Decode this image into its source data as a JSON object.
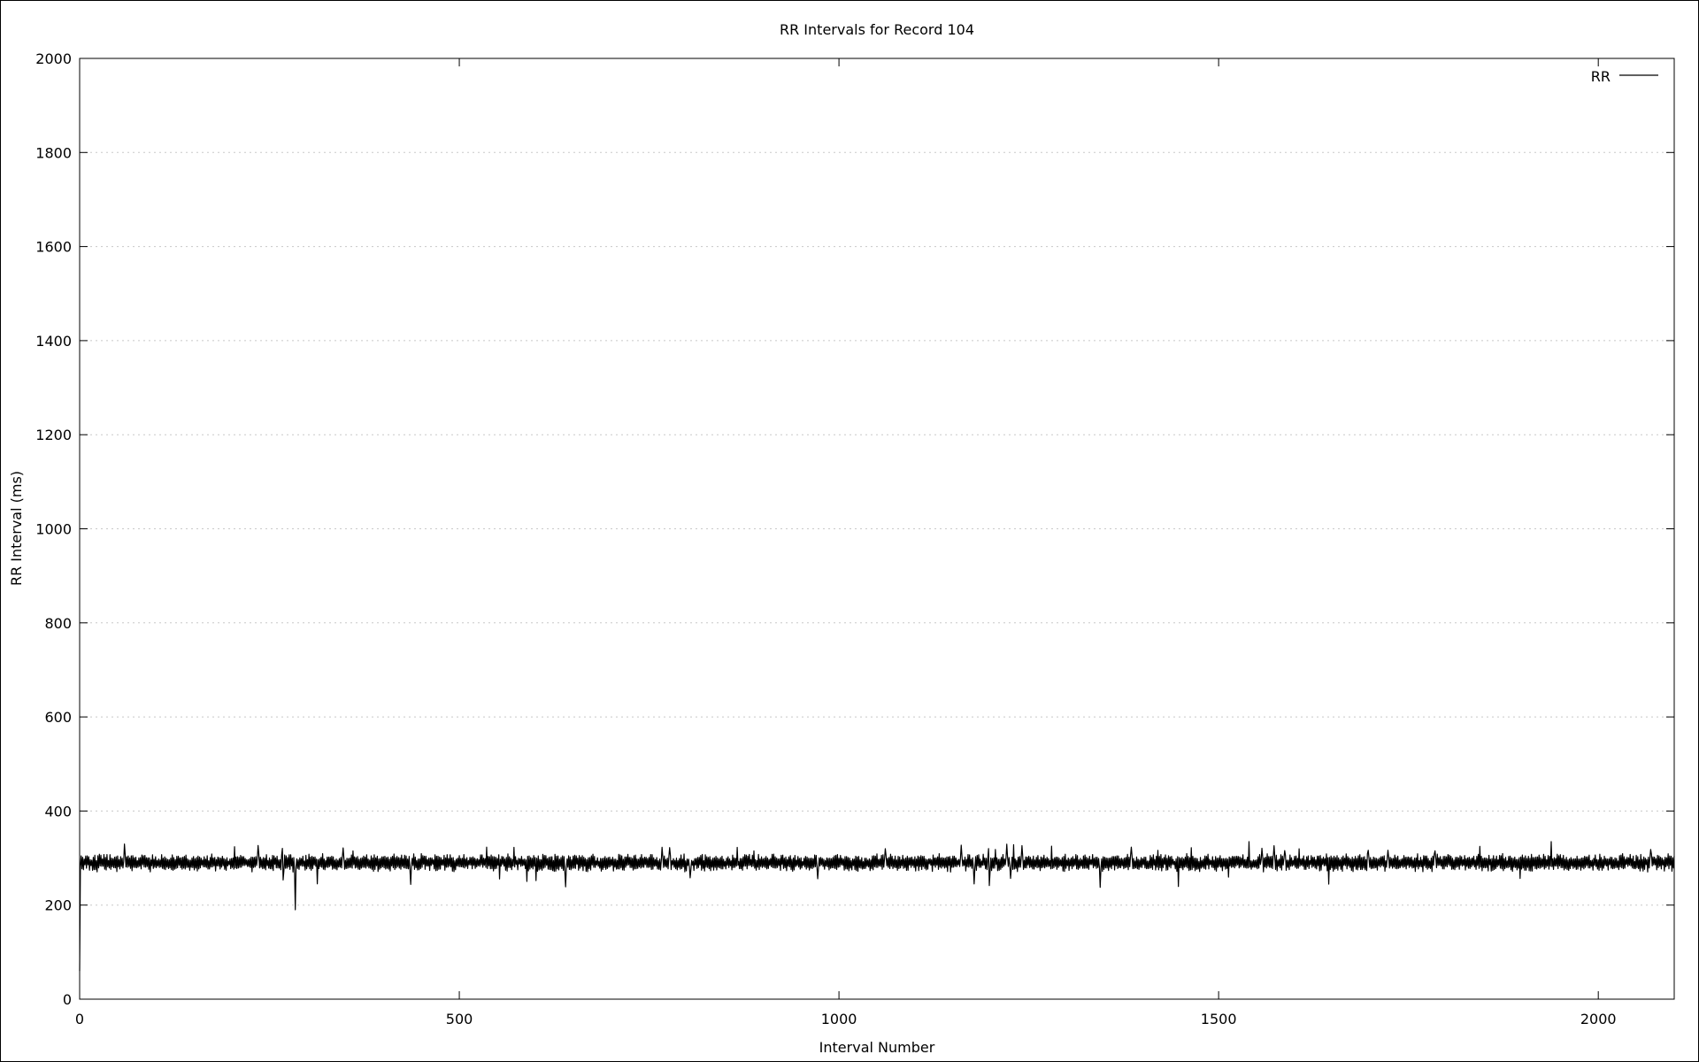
{
  "chart_data": {
    "type": "line",
    "title": "RR Intervals for Record 104",
    "xlabel": "Interval Number",
    "ylabel": "RR Interval (ms)",
    "xlim": [
      0,
      2100
    ],
    "ylim": [
      0,
      2000
    ],
    "x_ticks": [
      0,
      500,
      1000,
      1500,
      2000
    ],
    "y_ticks": [
      0,
      200,
      400,
      600,
      800,
      1000,
      1200,
      1400,
      1600,
      1800,
      2000
    ],
    "x_tick_labels": [
      "0",
      "500",
      "1000",
      "1500",
      "2000"
    ],
    "y_tick_labels": [
      "0",
      "200",
      "400",
      "600",
      "800",
      "1000",
      "1200",
      "1400",
      "1600",
      "1800",
      "2000"
    ],
    "grid": true,
    "legend_position": "top-right",
    "series": [
      {
        "name": "RR",
        "color": "#000000",
        "x_start": 0,
        "x_step": 1,
        "sampling": "one value per interval",
        "values_note": "noisy trace around ~290 ms with occasional spikes; first value ~60 ms",
        "summary": {
          "mean": 290,
          "min_after_start": 190,
          "max": 335,
          "first_value": 60
        }
      }
    ],
    "annotations": [
      {
        "x": 284,
        "y": 190,
        "kind": "dip"
      },
      {
        "x": 1540,
        "y": 335,
        "kind": "spike"
      },
      {
        "x": 1938,
        "y": 335,
        "kind": "spike"
      }
    ]
  }
}
